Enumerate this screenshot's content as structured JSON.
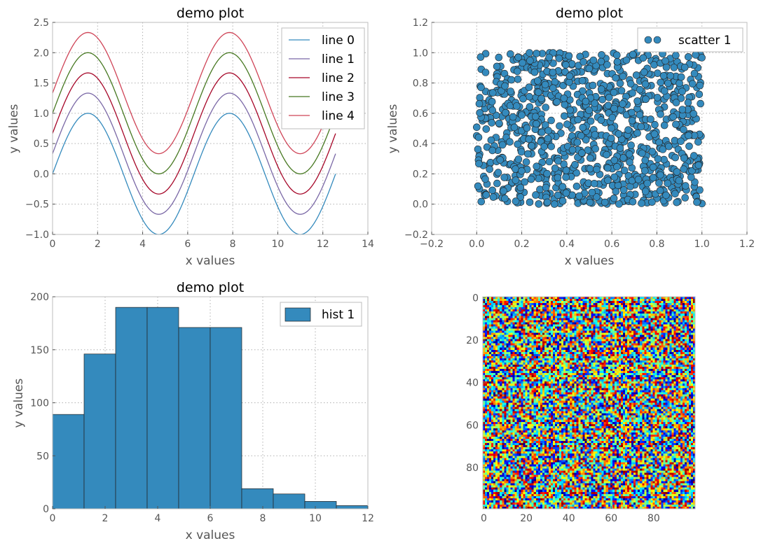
{
  "chart_data": [
    {
      "type": "line",
      "title": "demo plot",
      "xlabel": "x values",
      "ylabel": "y values",
      "xlim": [
        0,
        14
      ],
      "ylim": [
        -1.0,
        2.5
      ],
      "xticks": [
        0,
        2,
        4,
        6,
        8,
        10,
        12,
        14
      ],
      "xtick_labels": [
        "0",
        "2",
        "4",
        "6",
        "8",
        "10",
        "12",
        "14"
      ],
      "yticks": [
        -1.0,
        -0.5,
        0.0,
        0.5,
        1.0,
        1.5,
        2.0,
        2.5
      ],
      "ytick_labels": [
        "−1.0",
        "−0.5",
        "0.0",
        "0.5",
        "1.0",
        "1.5",
        "2.0",
        "2.5"
      ],
      "grid": true,
      "legend_position": "top-right",
      "function": "y = sin(x) + offset",
      "x_range": [
        0,
        12.566
      ],
      "series": [
        {
          "name": "line 0",
          "offset": 0.0,
          "color": "#348ABD"
        },
        {
          "name": "line 1",
          "offset": 0.333,
          "color": "#7A68A6"
        },
        {
          "name": "line 2",
          "offset": 0.667,
          "color": "#A60628"
        },
        {
          "name": "line 3",
          "offset": 1.0,
          "color": "#467821"
        },
        {
          "name": "line 4",
          "offset": 1.333,
          "color": "#CF4457"
        }
      ]
    },
    {
      "type": "scatter",
      "title": "demo plot",
      "xlabel": "x values",
      "ylabel": "y values",
      "xlim": [
        -0.2,
        1.2
      ],
      "ylim": [
        -0.2,
        1.2
      ],
      "xticks": [
        -0.2,
        0.0,
        0.2,
        0.4,
        0.6,
        0.8,
        1.0,
        1.2
      ],
      "xtick_labels": [
        "−0.2",
        "0.0",
        "0.2",
        "0.4",
        "0.6",
        "0.8",
        "1.0",
        "1.2"
      ],
      "yticks": [
        -0.2,
        0.0,
        0.2,
        0.4,
        0.6,
        0.8,
        1.0,
        1.2
      ],
      "ytick_labels": [
        "−0.2",
        "0.0",
        "0.2",
        "0.4",
        "0.6",
        "0.8",
        "1.0",
        "1.2"
      ],
      "grid": true,
      "legend_position": "top-right",
      "series": [
        {
          "name": "scatter 1",
          "color": "#348ABD",
          "distribution": "uniform random points in [0,1]×[0,1]",
          "n_points": 1000
        }
      ]
    },
    {
      "type": "bar",
      "title": "demo plot",
      "xlabel": "x values",
      "ylabel": "y values",
      "xlim": [
        0,
        12
      ],
      "ylim": [
        0,
        200
      ],
      "xticks": [
        0,
        2,
        4,
        6,
        8,
        10,
        12
      ],
      "xtick_labels": [
        "0",
        "2",
        "4",
        "6",
        "8",
        "10",
        "12"
      ],
      "yticks": [
        0,
        50,
        100,
        150,
        200
      ],
      "ytick_labels": [
        "0",
        "50",
        "100",
        "150",
        "200"
      ],
      "grid": true,
      "legend_position": "top-right",
      "bin_edges": [
        0,
        1.2,
        2.4,
        3.6,
        4.8,
        6.0,
        7.2,
        8.4,
        9.6,
        10.8,
        12.0
      ],
      "series": [
        {
          "name": "hist 1",
          "color": "#348ABD",
          "values": [
            89,
            146,
            190,
            190,
            171,
            171,
            19,
            14,
            7,
            3
          ]
        }
      ]
    },
    {
      "type": "heatmap",
      "xlim": [
        0,
        100
      ],
      "ylim": [
        100,
        0
      ],
      "xticks": [
        0,
        20,
        40,
        60,
        80
      ],
      "xtick_labels": [
        "0",
        "20",
        "40",
        "60",
        "80"
      ],
      "yticks": [
        0,
        20,
        40,
        60,
        80
      ],
      "ytick_labels": [
        "0",
        "20",
        "40",
        "60",
        "80"
      ],
      "grid": false,
      "grid_size": [
        100,
        100
      ],
      "colormap": "jet",
      "values": "random noise in [0,1]"
    }
  ]
}
